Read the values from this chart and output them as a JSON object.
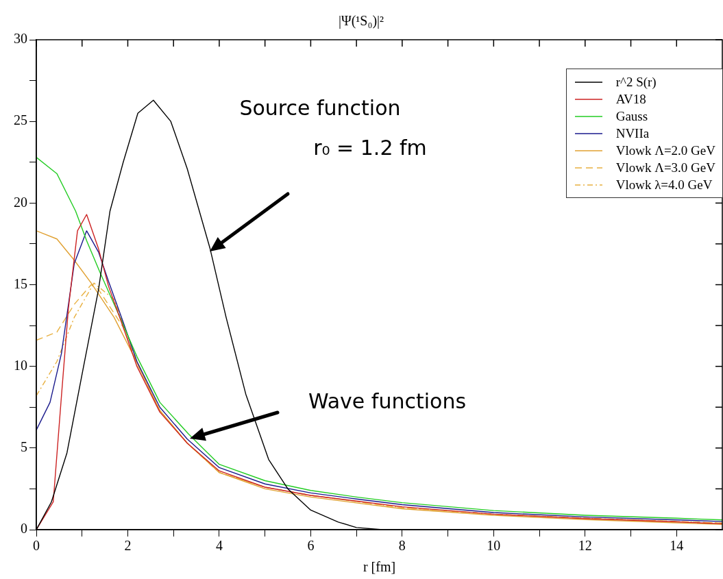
{
  "chart_data": {
    "type": "line",
    "title": "|Ψ(¹S₀)|²",
    "xlabel": "r [fm]",
    "xlim": [
      0,
      15
    ],
    "xticks": [
      0,
      {
        "value": 1,
        "label": null
      },
      2,
      {
        "value": 3,
        "label": null
      },
      4,
      {
        "value": 5,
        "label": null
      },
      6,
      {
        "value": 7,
        "label": null
      },
      8,
      {
        "value": 9,
        "label": null
      },
      10,
      {
        "value": 11,
        "label": null
      },
      12,
      {
        "value": 13,
        "label": null
      },
      14
    ],
    "ylim": [
      0,
      30
    ],
    "yticks": [
      0,
      {
        "value": 2.5,
        "label": null
      },
      5,
      {
        "value": 7.5,
        "label": null
      },
      10,
      {
        "value": 12.5,
        "label": null
      },
      15,
      {
        "value": 17.5,
        "label": null
      },
      20,
      {
        "value": 22.5,
        "label": null
      },
      25,
      {
        "value": 27.5,
        "label": null
      },
      30
    ],
    "grid": false,
    "legend": "top right",
    "marker": "none",
    "annotations": [
      "Source function",
      "r₀ = 1.2 fm",
      "Wave functions"
    ],
    "series": [
      {
        "name": "r^2 S(r)",
        "color": "#000000",
        "x": [
          0,
          0.33,
          0.67,
          1.02,
          1.36,
          1.61,
          1.9,
          2.22,
          2.56,
          2.94,
          3.3,
          3.8,
          4.15,
          4.58,
          5.08,
          5.5,
          6.0,
          6.6,
          7.0,
          7.57
        ],
        "values": [
          0,
          1.7,
          4.7,
          9.8,
          14.7,
          19.5,
          22.5,
          25.5,
          26.3,
          25.0,
          22.1,
          17.2,
          13,
          8.3,
          4.3,
          2.5,
          1.2,
          0.47,
          0.13,
          0
        ]
      },
      {
        "name": "AV18",
        "color": "#cc2222",
        "x": [
          0,
          0.37,
          0.55,
          0.7,
          0.9,
          1.1,
          1.36,
          1.58,
          1.9,
          2.2,
          2.7,
          3.3,
          4,
          5,
          6,
          7,
          8,
          10,
          12,
          14,
          15
        ],
        "values": [
          0,
          1.7,
          8.2,
          13.5,
          18.3,
          19.3,
          17.2,
          14.9,
          12.4,
          10.0,
          7.2,
          5.3,
          3.6,
          2.6,
          2.1,
          1.75,
          1.4,
          0.95,
          0.68,
          0.48,
          0.36
        ]
      },
      {
        "name": "Gauss",
        "color": "#22cc22",
        "x": [
          0,
          0.45,
          0.86,
          1.1,
          1.4,
          1.83,
          2.2,
          2.7,
          3.33,
          4,
          5,
          6,
          7,
          8,
          10,
          12,
          14,
          15
        ],
        "values": [
          22.8,
          21.8,
          19.5,
          17.7,
          15.7,
          13,
          10.6,
          7.8,
          5.85,
          4.0,
          3.0,
          2.4,
          2.0,
          1.65,
          1.17,
          0.88,
          0.7,
          0.6
        ]
      },
      {
        "name": "NVIIa",
        "color": "#1a1a8c",
        "x": [
          0,
          0.3,
          0.55,
          0.83,
          1.1,
          1.36,
          1.58,
          1.9,
          2.2,
          2.7,
          3.3,
          4,
          5,
          6,
          7,
          8,
          10,
          12,
          14,
          15
        ],
        "values": [
          6.1,
          7.8,
          10.8,
          16.3,
          18.3,
          17.0,
          15.2,
          12.7,
          10.3,
          7.5,
          5.55,
          3.8,
          2.8,
          2.25,
          1.88,
          1.53,
          1.05,
          0.78,
          0.6,
          0.5
        ]
      },
      {
        "name": "Vlowk Λ=2.0 GeV",
        "color": "#e0a030",
        "line_style": "solid",
        "x": [
          0,
          0.45,
          0.83,
          1.2,
          1.7,
          2.1,
          2.7,
          3.3,
          4,
          5,
          6,
          8,
          10,
          12,
          14,
          15
        ],
        "values": [
          18.3,
          17.8,
          16.5,
          15.1,
          13,
          10.8,
          7.3,
          5.3,
          3.5,
          2.5,
          2.0,
          1.28,
          0.88,
          0.62,
          0.42,
          0.32
        ]
      },
      {
        "name": "Vlowk Λ=3.0 GeV",
        "color": "#e8b040",
        "line_style": "dashed",
        "x": [
          0,
          0.45,
          0.83,
          1.2,
          1.36,
          1.9,
          2.2,
          2.7,
          3.3,
          4,
          5,
          6,
          8,
          10,
          12,
          14,
          15
        ],
        "values": [
          11.6,
          12.1,
          13.8,
          15.0,
          14.7,
          12.4,
          10.2,
          7.3,
          5.3,
          3.5,
          2.6,
          2.1,
          1.35,
          0.95,
          0.7,
          0.5,
          0.4
        ]
      },
      {
        "name": "Vlowk λ=4.0 GeV",
        "color": "#e8b040",
        "line_style": "dotted",
        "x": [
          0,
          0.45,
          0.83,
          1.26,
          1.7,
          2.2,
          2.7,
          3.3,
          4,
          5,
          6,
          8,
          10,
          12,
          14,
          15
        ],
        "values": [
          8.2,
          10.3,
          13,
          15.1,
          14.1,
          10.3,
          7.3,
          5.3,
          3.5,
          2.6,
          2.1,
          1.35,
          0.95,
          0.7,
          0.5,
          0.4
        ]
      }
    ]
  }
}
